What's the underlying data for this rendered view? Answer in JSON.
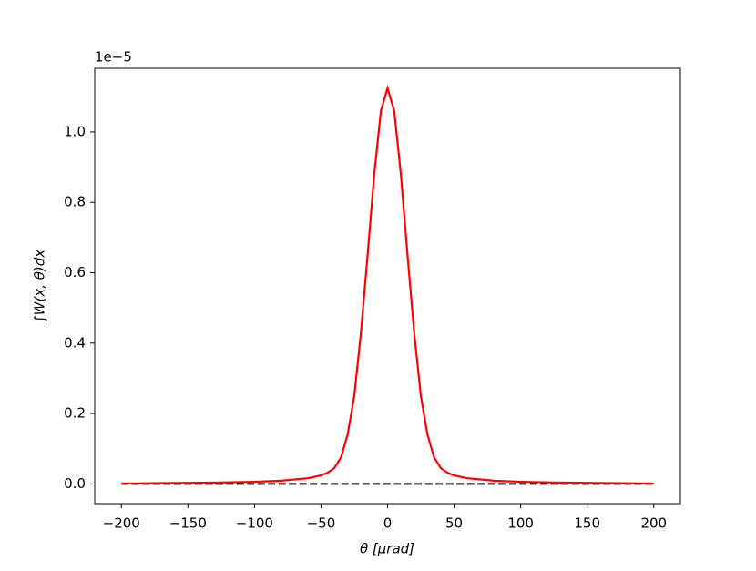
{
  "chart_data": {
    "type": "line",
    "y_offset_label": "1e−5",
    "x_label": "θ  [μrad]",
    "y_label": "∫W(x, θ)dx",
    "series": [
      {
        "color": "#ff0000",
        "style": "solid",
        "x": [
          -200,
          -175,
          -150,
          -125,
          -100,
          -80,
          -60,
          -50,
          -45,
          -40,
          -35,
          -30,
          -25,
          -20,
          -15,
          -10,
          -5,
          0,
          5,
          10,
          15,
          20,
          25,
          30,
          35,
          40,
          45,
          50,
          60,
          80,
          100,
          125,
          150,
          175,
          200
        ],
        "values": [
          0.001,
          0.002,
          0.003,
          0.004,
          0.006,
          0.009,
          0.016,
          0.024,
          0.032,
          0.045,
          0.075,
          0.14,
          0.25,
          0.43,
          0.65,
          0.88,
          1.06,
          1.125,
          1.06,
          0.88,
          0.65,
          0.43,
          0.25,
          0.14,
          0.075,
          0.045,
          0.032,
          0.024,
          0.016,
          0.009,
          0.006,
          0.004,
          0.003,
          0.002,
          0.001
        ]
      },
      {
        "color": "#000000",
        "style": "dashed",
        "x": [
          -200,
          200
        ],
        "values": [
          0,
          0
        ]
      }
    ],
    "xlim": [
      -220,
      220
    ],
    "ylim": [
      -0.056,
      1.181
    ],
    "xticks": [
      {
        "value": -200,
        "label": "−200"
      },
      {
        "value": -150,
        "label": "−150"
      },
      {
        "value": -100,
        "label": "−100"
      },
      {
        "value": -50,
        "label": "−50"
      },
      0,
      50,
      100,
      150,
      200
    ],
    "yticks": [
      {
        "value": 0,
        "label": "0.0"
      },
      0.2,
      0.4,
      0.6,
      0.8,
      {
        "value": 1,
        "label": "1.0"
      }
    ]
  }
}
